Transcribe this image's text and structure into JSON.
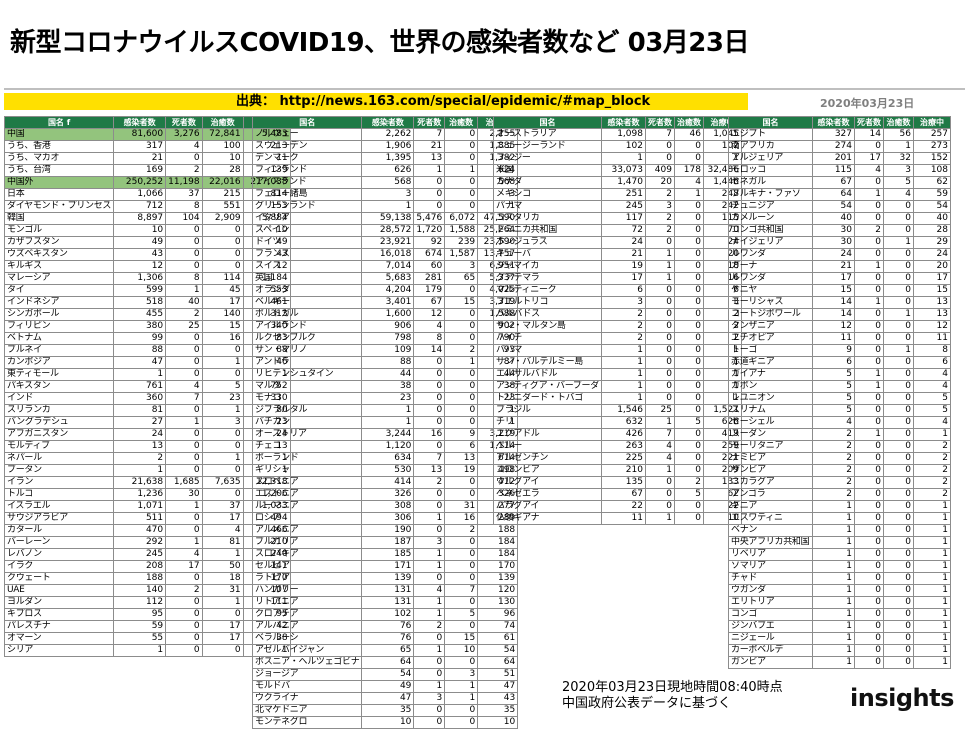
{
  "title": "新型コロナウイルスCOVID19、世界の感染者数など 03月23日",
  "source": "出典： http://news.163.com/special/epidemic/#map_block",
  "date_label": "2020年03月23日",
  "footer": {
    "line1": "2020年03月23日現地時間08:40時点",
    "line2": "中国政府公表データに基づく"
  },
  "logo": "insights",
  "colors": {
    "header": "#1f7a46",
    "highlight": "#93c47d",
    "source_bar": "#ffe000"
  },
  "table1": {
    "headers": [
      "国名 f",
      "感染者数",
      "死者数",
      "治癒数",
      "治療中"
    ],
    "rows": [
      [
        "中国",
        "81,600",
        "3,276",
        "72,841",
        "5,483"
      ],
      [
        "うち、香港",
        "317",
        "4",
        "100",
        "213"
      ],
      [
        "うち、マカオ",
        "21",
        "0",
        "10",
        "11"
      ],
      [
        "うち、台湾",
        "169",
        "2",
        "28",
        "139"
      ],
      [
        "中国外",
        "250,252",
        "11,198",
        "22,016",
        "217,038"
      ],
      [
        "日本",
        "1,066",
        "37",
        "215",
        "814"
      ],
      [
        "ダイヤモンド・プリンセス",
        "712",
        "8",
        "551",
        "153"
      ],
      [
        "韓国",
        "8,897",
        "104",
        "2,909",
        "5,884"
      ],
      [
        "モンゴル",
        "10",
        "0",
        "0",
        "10"
      ],
      [
        "カザフスタン",
        "49",
        "0",
        "0",
        "49"
      ],
      [
        "ウズベキスタン",
        "43",
        "0",
        "0",
        "43"
      ],
      [
        "キルギス",
        "12",
        "0",
        "0",
        "12"
      ],
      [
        "マレーシア",
        "1,306",
        "8",
        "114",
        "1,184"
      ],
      [
        "タイ",
        "599",
        "1",
        "45",
        "553"
      ],
      [
        "インドネシア",
        "518",
        "40",
        "17",
        "461"
      ],
      [
        "シンガポール",
        "455",
        "2",
        "140",
        "313"
      ],
      [
        "フィリピン",
        "380",
        "25",
        "15",
        "340"
      ],
      [
        "ベトナム",
        "99",
        "0",
        "16",
        "83"
      ],
      [
        "ブルネイ",
        "88",
        "0",
        "0",
        "88"
      ],
      [
        "カンボジア",
        "47",
        "0",
        "1",
        "46"
      ],
      [
        "東ティモール",
        "1",
        "0",
        "0",
        "1"
      ],
      [
        "パキスタン",
        "761",
        "4",
        "5",
        "752"
      ],
      [
        "インド",
        "360",
        "7",
        "23",
        "330"
      ],
      [
        "スリランカ",
        "81",
        "0",
        "1",
        "80"
      ],
      [
        "バングラデシュ",
        "27",
        "1",
        "3",
        "23"
      ],
      [
        "アフガニスタン",
        "24",
        "0",
        "0",
        "24"
      ],
      [
        "モルディブ",
        "13",
        "0",
        "0",
        "13"
      ],
      [
        "ネパール",
        "2",
        "0",
        "1",
        "1"
      ],
      [
        "ブータン",
        "1",
        "0",
        "0",
        "1"
      ],
      [
        "イラン",
        "21,638",
        "1,685",
        "7,635",
        "12,318"
      ],
      [
        "トルコ",
        "1,236",
        "30",
        "0",
        "1,206"
      ],
      [
        "イスラエル",
        "1,071",
        "1",
        "37",
        "1,033"
      ],
      [
        "サウジアラビア",
        "511",
        "0",
        "17",
        "494"
      ],
      [
        "カタール",
        "470",
        "0",
        "4",
        "466"
      ],
      [
        "バーレーン",
        "292",
        "1",
        "81",
        "210"
      ],
      [
        "レバノン",
        "245",
        "4",
        "1",
        "240"
      ],
      [
        "イラク",
        "208",
        "17",
        "50",
        "141"
      ],
      [
        "クウェート",
        "188",
        "0",
        "18",
        "170"
      ],
      [
        "UAE",
        "140",
        "2",
        "31",
        "107"
      ],
      [
        "ヨルダン",
        "112",
        "0",
        "1",
        "111"
      ],
      [
        "キプロス",
        "95",
        "0",
        "0",
        "95"
      ],
      [
        "パレスチナ",
        "59",
        "0",
        "17",
        "42"
      ],
      [
        "オマーン",
        "55",
        "0",
        "17",
        "38"
      ],
      [
        "シリア",
        "1",
        "0",
        "0",
        "1"
      ]
    ]
  },
  "table2": {
    "headers": [
      "国名",
      "感染者数",
      "死者数",
      "治癒数",
      "治療中"
    ],
    "rows": [
      [
        "ノルウェー",
        "2,262",
        "7",
        "0",
        "2,255"
      ],
      [
        "スウェーデン",
        "1,906",
        "21",
        "0",
        "1,885"
      ],
      [
        "デンマーク",
        "1,395",
        "13",
        "0",
        "1,382"
      ],
      [
        "フィンランド",
        "626",
        "1",
        "1",
        "624"
      ],
      [
        "アイスランド",
        "568",
        "0",
        "0",
        "568"
      ],
      [
        "フェロー諸島",
        "3",
        "0",
        "0",
        "3"
      ],
      [
        "グリーンランド",
        "1",
        "0",
        "0",
        "1"
      ],
      [
        "イタリア",
        "59,138",
        "5,476",
        "6,072",
        "47,590"
      ],
      [
        "スペイン",
        "28,572",
        "1,720",
        "1,588",
        "25,264"
      ],
      [
        "ドイツ",
        "23,921",
        "92",
        "239",
        "23,590"
      ],
      [
        "フランス",
        "16,018",
        "674",
        "1,587",
        "13,757"
      ],
      [
        "スイス",
        "7,014",
        "60",
        "3",
        "6,951"
      ],
      [
        "英国",
        "5,683",
        "281",
        "65",
        "5,337"
      ],
      [
        "オランダ",
        "4,204",
        "179",
        "0",
        "4,025"
      ],
      [
        "ベルギー",
        "3,401",
        "67",
        "15",
        "3,319"
      ],
      [
        "ポルトガル",
        "1,600",
        "12",
        "0",
        "1,588"
      ],
      [
        "アイルランド",
        "906",
        "4",
        "0",
        "902"
      ],
      [
        "ルクセンブルク",
        "798",
        "8",
        "0",
        "790"
      ],
      [
        "サン・マリノ",
        "109",
        "14",
        "2",
        "93"
      ],
      [
        "アンドラ",
        "88",
        "0",
        "1",
        "87"
      ],
      [
        "リヒテンシュタイン",
        "44",
        "0",
        "0",
        "44"
      ],
      [
        "マルタ",
        "38",
        "0",
        "0",
        "38"
      ],
      [
        "モナコ",
        "23",
        "0",
        "0",
        "23"
      ],
      [
        "ジブラルタル",
        "1",
        "0",
        "0",
        "1"
      ],
      [
        "バチカン",
        "1",
        "0",
        "0",
        "1"
      ],
      [
        "オーストリア",
        "3,244",
        "16",
        "9",
        "3,219"
      ],
      [
        "チェコ",
        "1,120",
        "0",
        "6",
        "1,114"
      ],
      [
        "ポーランド",
        "634",
        "7",
        "13",
        "614"
      ],
      [
        "ギリシャ",
        "530",
        "13",
        "19",
        "498"
      ],
      [
        "スロベニア",
        "414",
        "2",
        "0",
        "412"
      ],
      [
        "エストニア",
        "326",
        "0",
        "0",
        "326"
      ],
      [
        "ルーマニア",
        "308",
        "0",
        "31",
        "277"
      ],
      [
        "ロシア",
        "306",
        "1",
        "16",
        "289"
      ],
      [
        "アルメニア",
        "190",
        "0",
        "2",
        "188"
      ],
      [
        "ブルガリア",
        "187",
        "3",
        "0",
        "184"
      ],
      [
        "スロバキア",
        "185",
        "1",
        "0",
        "184"
      ],
      [
        "セルビア",
        "171",
        "1",
        "0",
        "170"
      ],
      [
        "ラトビア",
        "139",
        "0",
        "0",
        "139"
      ],
      [
        "ハンガリー",
        "131",
        "4",
        "7",
        "120"
      ],
      [
        "リトアニア",
        "131",
        "1",
        "0",
        "130"
      ],
      [
        "クロアチア",
        "102",
        "1",
        "5",
        "96"
      ],
      [
        "アルバニア",
        "76",
        "2",
        "0",
        "74"
      ],
      [
        "ベラルーシ",
        "76",
        "0",
        "15",
        "61"
      ],
      [
        "アゼルバイジャン",
        "65",
        "1",
        "10",
        "54"
      ],
      [
        "ボスニア・ヘルツェゴビナ",
        "64",
        "0",
        "0",
        "64"
      ],
      [
        "ジョージア",
        "54",
        "0",
        "3",
        "51"
      ],
      [
        "モルドバ",
        "49",
        "1",
        "1",
        "47"
      ],
      [
        "ウクライナ",
        "47",
        "3",
        "1",
        "43"
      ],
      [
        "北マケドニア",
        "35",
        "0",
        "0",
        "35"
      ],
      [
        "モンテネグロ",
        "10",
        "0",
        "0",
        "10"
      ]
    ]
  },
  "table3": {
    "headers": [
      "国名",
      "感染者数",
      "死者数",
      "治癒数",
      "治療中"
    ],
    "rows": [
      [
        "オーストラリア",
        "1,098",
        "7",
        "46",
        "1,045"
      ],
      [
        "ニュージーランド",
        "102",
        "0",
        "0",
        "102"
      ],
      [
        "フィジー",
        "1",
        "0",
        "0",
        "1"
      ],
      [
        "米国",
        "33,073",
        "409",
        "178",
        "32,486"
      ],
      [
        "カナダ",
        "1,470",
        "20",
        "4",
        "1,446"
      ],
      [
        "メキシコ",
        "251",
        "2",
        "1",
        "248"
      ],
      [
        "パナマ",
        "245",
        "3",
        "0",
        "242"
      ],
      [
        "コスタリカ",
        "117",
        "2",
        "0",
        "115"
      ],
      [
        "ドミニカ共和国",
        "72",
        "2",
        "0",
        "70"
      ],
      [
        "ホンジュラス",
        "24",
        "0",
        "0",
        "24"
      ],
      [
        "キューバ",
        "21",
        "1",
        "0",
        "20"
      ],
      [
        "ジャマイカ",
        "19",
        "1",
        "0",
        "18"
      ],
      [
        "グアテマラ",
        "17",
        "1",
        "0",
        "16"
      ],
      [
        "マルティニーク",
        "6",
        "0",
        "0",
        "6"
      ],
      [
        "プエルトリコ",
        "3",
        "0",
        "0",
        "3"
      ],
      [
        "バルバドス",
        "2",
        "0",
        "0",
        "2"
      ],
      [
        "サン・マルタン島",
        "2",
        "0",
        "0",
        "2"
      ],
      [
        "ハイチ",
        "2",
        "0",
        "0",
        "2"
      ],
      [
        "バハマ",
        "1",
        "0",
        "0",
        "1"
      ],
      [
        "サン・バルテルミー島",
        "1",
        "0",
        "0",
        "1"
      ],
      [
        "エルサルバドル",
        "1",
        "0",
        "0",
        "1"
      ],
      [
        "アンティグア・バーブーダ",
        "1",
        "0",
        "0",
        "1"
      ],
      [
        "トリニダード・トバゴ",
        "1",
        "0",
        "0",
        "1"
      ],
      [
        "ブラジル",
        "1,546",
        "25",
        "0",
        "1,521"
      ],
      [
        "チリ",
        "632",
        "1",
        "5",
        "626"
      ],
      [
        "エクアドル",
        "426",
        "7",
        "0",
        "419"
      ],
      [
        "ペルー",
        "263",
        "4",
        "0",
        "259"
      ],
      [
        "アルゼンチン",
        "225",
        "4",
        "0",
        "221"
      ],
      [
        "コロンビア",
        "210",
        "1",
        "0",
        "209"
      ],
      [
        "ウルグアイ",
        "135",
        "0",
        "2",
        "133"
      ],
      [
        "ベネゼエラ",
        "67",
        "0",
        "5",
        "62"
      ],
      [
        "パラグアイ",
        "22",
        "0",
        "0",
        "22"
      ],
      [
        "仏領ギアナ",
        "11",
        "1",
        "0",
        "10"
      ]
    ]
  },
  "table4": {
    "headers": [
      "国名",
      "感染者数",
      "死者数",
      "治癒数",
      "治療中"
    ],
    "rows": [
      [
        "エジプト",
        "327",
        "14",
        "56",
        "257"
      ],
      [
        "南アフリカ",
        "274",
        "0",
        "1",
        "273"
      ],
      [
        "アルジェリア",
        "201",
        "17",
        "32",
        "152"
      ],
      [
        "モロッコ",
        "115",
        "4",
        "3",
        "108"
      ],
      [
        "セネガル",
        "67",
        "0",
        "5",
        "62"
      ],
      [
        "ブルキナ・ファソ",
        "64",
        "1",
        "4",
        "59"
      ],
      [
        "チュニジア",
        "54",
        "0",
        "0",
        "54"
      ],
      [
        "カメルーン",
        "40",
        "0",
        "0",
        "40"
      ],
      [
        "コンゴ共和国",
        "30",
        "2",
        "0",
        "28"
      ],
      [
        "ナイジェリア",
        "30",
        "0",
        "1",
        "29"
      ],
      [
        "ルワンダ",
        "24",
        "0",
        "0",
        "24"
      ],
      [
        "ガーナ",
        "21",
        "1",
        "0",
        "20"
      ],
      [
        "ルワンダ",
        "17",
        "0",
        "0",
        "17"
      ],
      [
        "ケニヤ",
        "15",
        "0",
        "0",
        "15"
      ],
      [
        "モーリシャス",
        "14",
        "1",
        "0",
        "13"
      ],
      [
        "コートジボワール",
        "14",
        "0",
        "1",
        "13"
      ],
      [
        "タンザニア",
        "12",
        "0",
        "0",
        "12"
      ],
      [
        "エチオピア",
        "11",
        "0",
        "0",
        "11"
      ],
      [
        "トーゴ",
        "9",
        "0",
        "1",
        "8"
      ],
      [
        "赤道ギニア",
        "6",
        "0",
        "0",
        "6"
      ],
      [
        "ガイアナ",
        "5",
        "1",
        "0",
        "4"
      ],
      [
        "ガボン",
        "5",
        "1",
        "0",
        "4"
      ],
      [
        "レユニオン",
        "5",
        "0",
        "0",
        "5"
      ],
      [
        "スリナム",
        "5",
        "0",
        "0",
        "5"
      ],
      [
        "セーシェル",
        "4",
        "0",
        "0",
        "4"
      ],
      [
        "スーダン",
        "2",
        "1",
        "0",
        "1"
      ],
      [
        "モーリタニア",
        "2",
        "0",
        "0",
        "2"
      ],
      [
        "ナミビア",
        "2",
        "0",
        "0",
        "2"
      ],
      [
        "ザンビア",
        "2",
        "0",
        "0",
        "2"
      ],
      [
        "ニカラグア",
        "2",
        "0",
        "0",
        "2"
      ],
      [
        "アンゴラ",
        "2",
        "0",
        "0",
        "2"
      ],
      [
        "ギニア",
        "1",
        "0",
        "0",
        "1"
      ],
      [
        "エスワティニ",
        "1",
        "0",
        "0",
        "1"
      ],
      [
        "ベナン",
        "1",
        "0",
        "0",
        "1"
      ],
      [
        "中央アフリカ共和国",
        "1",
        "0",
        "0",
        "1"
      ],
      [
        "リベリア",
        "1",
        "0",
        "0",
        "1"
      ],
      [
        "ソマリア",
        "1",
        "0",
        "0",
        "1"
      ],
      [
        "チャド",
        "1",
        "0",
        "0",
        "1"
      ],
      [
        "ウガンダ",
        "1",
        "0",
        "0",
        "1"
      ],
      [
        "エリトリア",
        "1",
        "0",
        "0",
        "1"
      ],
      [
        "コンゴ",
        "1",
        "0",
        "0",
        "1"
      ],
      [
        "ジンバブエ",
        "1",
        "0",
        "0",
        "1"
      ],
      [
        "ニジェール",
        "1",
        "0",
        "0",
        "1"
      ],
      [
        "カーボベルデ",
        "1",
        "0",
        "0",
        "1"
      ],
      [
        "ガンビア",
        "1",
        "0",
        "0",
        "1"
      ]
    ]
  }
}
